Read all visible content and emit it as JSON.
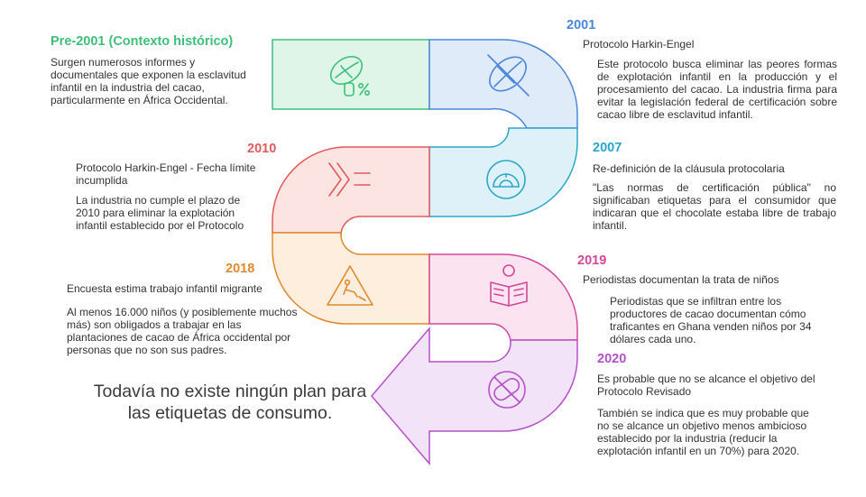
{
  "timeline": [
    {
      "year": "Pre-2001 (Contexto histórico)",
      "heading": "",
      "body": "Surgen numerosos informes y documentales que exponen la esclavitud infantil en la industria del cacao, particularmente en África Occidental.",
      "color": "#3ec07a",
      "icon": "cacao-pod-percent-icon"
    },
    {
      "year": "2001",
      "heading": "Protocolo Harkin-Engel",
      "body": "Este protocolo busca eliminar las peores formas de explotación infantil en la producción y el procesamiento del cacao. La industria firma para evitar la legislación federal de certificación sobre cacao libre de esclavitud infantil.",
      "color": "#4a86d9",
      "icon": "no-cacao-icon"
    },
    {
      "year": "2007",
      "heading": "Re-definición de la cláusula protocolaria",
      "body": "\"Las normas de certificación pública\" no significaban etiquetas para el consumidor que indicaran que el chocolate estaba libre de trabajo infantil.",
      "color": "#2aa8c6",
      "icon": "protractor-icon"
    },
    {
      "year": "2010",
      "heading": "Protocolo Harkin-Engel - Fecha límite incumplida",
      "body": "La industria no cumple el plazo de 2010 para eliminar la explotación infantil establecido por el Protocolo",
      "color": "#e05a5a",
      "icon": "deadline-arrows-icon"
    },
    {
      "year": "2018",
      "heading": "Encuesta estima trabajo infantil migrante",
      "body": "Al menos 16.000 niños (y posiblemente muchos más) son obligados a trabajar en las plantaciones de cacao de África occidental por personas que no son sus padres.",
      "color": "#e0892e",
      "icon": "child-labor-sign-icon"
    },
    {
      "year": "2019",
      "heading": "Periodistas documentan la trata de niños",
      "body": "Periodistas que se infiltran entre los productores de cacao documentan cómo traficantes en Ghana venden niños por 34 dólares cada uno.",
      "color": "#d2489a",
      "icon": "reporter-icon"
    },
    {
      "year": "2020",
      "heading": "Es probable que no se alcance el objetivo del Protocolo Revisado",
      "body": "También se indica que es muy probable que no se alcance un objetivo menos ambicioso establecido por la industria (reducir la explotación infantil en un 70%) para 2020.",
      "color": "#b451c9",
      "icon": "no-pill-icon"
    }
  ],
  "conclusion": "Todavía no existe ningún plan para las etiquetas de consumo."
}
